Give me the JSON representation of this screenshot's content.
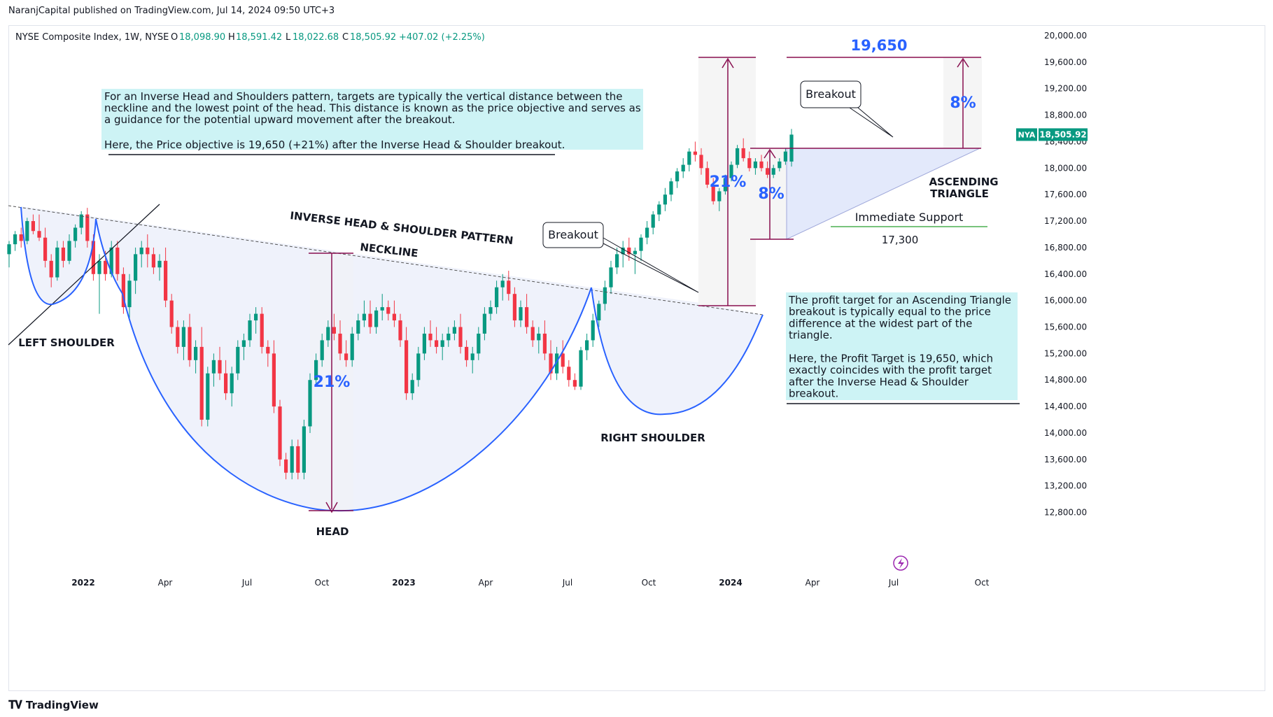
{
  "publisher": "NaranjCapital published on TradingView.com, Jul 14, 2024 09:50 UTC+3",
  "footer": {
    "brand": "TradingView"
  },
  "header": {
    "symbol": "NYSE Composite Index, 1W, NYSE",
    "o_label": "O",
    "o": "18,098.90",
    "h_label": "H",
    "h": "18,591.42",
    "l_label": "L",
    "l": "18,022.68",
    "c_label": "C",
    "c": "18,505.92",
    "change": "+407.02 (+2.25%)"
  },
  "price_tag": {
    "symbol": "NYA",
    "value": "18,505.92"
  },
  "colors": {
    "up": "#089981",
    "down": "#f23645",
    "curve": "#2962ff",
    "arrow": "#880e4f",
    "note_bg": "#cdf3f5",
    "pattern_fill": "#eef1fb",
    "support": "#4caf50",
    "accent_text": "#2962ff"
  },
  "icons": [
    "tradingview-logo-icon",
    "lightning-icon"
  ],
  "annotations": {
    "left_shoulder": "LEFT SHOULDER",
    "head": "HEAD",
    "right_shoulder": "RIGHT SHOULDER",
    "pattern_title": "INVERSE HEAD & SHOULDER PATTERN",
    "neckline": "NECKLINE",
    "breakout_1": "Breakout",
    "breakout_2": "Breakout",
    "pct_21_head": "21%",
    "pct_21_right": "21%",
    "pct_8_left": "8%",
    "pct_8_right": "8%",
    "target_value": "19,650",
    "asc_triangle_1": "ASCENDING",
    "asc_triangle_2": "TRIANGLE",
    "support_label": "Immediate Support",
    "support_value": "17,300",
    "note1": [
      "For an Inverse Head and Shoulders pattern, targets are typically the vertical distance between the",
      "neckline and the lowest point of the head. This distance is known as the price objective and serves as",
      "a guidance for the potential upward movement after the breakout.",
      "",
      "Here, the Price objective is 19,650 (+21%) after the Inverse Head & Shoulder breakout."
    ],
    "note2": [
      "The profit target for an Ascending Triangle",
      "breakout is typically equal to the price",
      "difference at the widest part of the",
      "triangle.",
      "",
      "Here, the Profit Target is 19,650, which",
      "exactly coincides with the profit target",
      "after the Inverse Head & Shoulder",
      "breakout."
    ]
  },
  "chart_data": {
    "type": "candlestick",
    "title": "NYSE Composite Index, 1W, NYSE",
    "x_ticks": [
      "2022",
      "Apr",
      "Jul",
      "Oct",
      "2023",
      "Apr",
      "Jul",
      "Oct",
      "2024",
      "Apr",
      "Jul",
      "Oct"
    ],
    "y_ticks": [
      "20,000.00",
      "19,600.00",
      "19,200.00",
      "18,800.00",
      "18,400.00",
      "18,000.00",
      "17,600.00",
      "17,200.00",
      "16,800.00",
      "16,400.00",
      "16,000.00",
      "15,600.00",
      "15,200.00",
      "14,800.00",
      "14,400.00",
      "14,000.00",
      "13,600.00",
      "13,200.00",
      "12,800.00"
    ],
    "ylim": [
      12500,
      20200
    ],
    "last_close": 18505.92,
    "key_levels": {
      "head_low": 13300,
      "neckline_breakout": 16200,
      "target": 19650,
      "support": 17300,
      "triangle_top": 18400,
      "triangle_base": 17100
    },
    "candles": [
      [
        16700,
        16900,
        16500,
        16850
      ],
      [
        16850,
        17050,
        16750,
        17000
      ],
      [
        17000,
        17100,
        16800,
        16900
      ],
      [
        16900,
        17250,
        16850,
        17200
      ],
      [
        17200,
        17300,
        17000,
        17050
      ],
      [
        17050,
        17300,
        16900,
        16950
      ],
      [
        16950,
        17100,
        16500,
        16600
      ],
      [
        16600,
        16700,
        16200,
        16350
      ],
      [
        16350,
        16900,
        16300,
        16800
      ],
      [
        16800,
        16900,
        16500,
        16600
      ],
      [
        16600,
        17000,
        16550,
        16900
      ],
      [
        16900,
        17150,
        16800,
        17100
      ],
      [
        17100,
        17350,
        17000,
        17300
      ],
      [
        17300,
        17400,
        16800,
        16900
      ],
      [
        16900,
        17000,
        16300,
        16400
      ],
      [
        16400,
        16700,
        15800,
        16600
      ],
      [
        16600,
        16750,
        16300,
        16400
      ],
      [
        16400,
        16900,
        16350,
        16800
      ],
      [
        16800,
        16900,
        16300,
        16400
      ],
      [
        16400,
        16500,
        15800,
        15900
      ],
      [
        15900,
        16400,
        15700,
        16300
      ],
      [
        16300,
        16800,
        16100,
        16700
      ],
      [
        16700,
        16900,
        16500,
        16800
      ],
      [
        16800,
        17000,
        16500,
        16700
      ],
      [
        16700,
        16800,
        16400,
        16500
      ],
      [
        16500,
        16700,
        16300,
        16600
      ],
      [
        16600,
        16800,
        15900,
        16000
      ],
      [
        16000,
        16100,
        15500,
        15600
      ],
      [
        15600,
        15700,
        15200,
        15300
      ],
      [
        15300,
        15700,
        15100,
        15600
      ],
      [
        15600,
        15800,
        15000,
        15100
      ],
      [
        15100,
        15400,
        14900,
        15300
      ],
      [
        15300,
        15600,
        14100,
        14200
      ],
      [
        14200,
        15000,
        14100,
        14900
      ],
      [
        14900,
        15200,
        14700,
        15100
      ],
      [
        15100,
        15300,
        14800,
        14900
      ],
      [
        14900,
        15100,
        14500,
        14600
      ],
      [
        14600,
        15000,
        14400,
        14900
      ],
      [
        14900,
        15400,
        14800,
        15300
      ],
      [
        15300,
        15500,
        15100,
        15400
      ],
      [
        15400,
        15800,
        15300,
        15700
      ],
      [
        15700,
        15900,
        15500,
        15800
      ],
      [
        15800,
        15900,
        15200,
        15300
      ],
      [
        15300,
        15400,
        15000,
        15200
      ],
      [
        15200,
        15400,
        14300,
        14400
      ],
      [
        14400,
        14500,
        13500,
        13600
      ],
      [
        13600,
        13700,
        13300,
        13400
      ],
      [
        13400,
        13900,
        13300,
        13800
      ],
      [
        13800,
        13900,
        13300,
        13400
      ],
      [
        13400,
        14200,
        13300,
        14100
      ],
      [
        14100,
        14900,
        14000,
        14800
      ],
      [
        14800,
        15200,
        14700,
        15100
      ],
      [
        15100,
        15500,
        15000,
        15400
      ],
      [
        15400,
        15700,
        15300,
        15600
      ],
      [
        15600,
        15800,
        15400,
        15500
      ],
      [
        15500,
        15700,
        15100,
        15200
      ],
      [
        15200,
        15400,
        15000,
        15100
      ],
      [
        15100,
        15600,
        15000,
        15500
      ],
      [
        15500,
        15800,
        15400,
        15700
      ],
      [
        15700,
        16000,
        15600,
        15800
      ],
      [
        15800,
        16000,
        15500,
        15600
      ],
      [
        15600,
        15900,
        15500,
        15850
      ],
      [
        15850,
        16100,
        15700,
        15900
      ],
      [
        15900,
        16000,
        15700,
        15800
      ],
      [
        15800,
        16000,
        15600,
        15700
      ],
      [
        15700,
        15800,
        15300,
        15400
      ],
      [
        15400,
        15600,
        14500,
        14600
      ],
      [
        14600,
        14900,
        14500,
        14800
      ],
      [
        14800,
        15300,
        14700,
        15200
      ],
      [
        15200,
        15600,
        15100,
        15500
      ],
      [
        15500,
        15700,
        15300,
        15400
      ],
      [
        15400,
        15600,
        15200,
        15300
      ],
      [
        15300,
        15500,
        15100,
        15400
      ],
      [
        15400,
        15600,
        15300,
        15500
      ],
      [
        15500,
        15700,
        15400,
        15600
      ],
      [
        15600,
        15800,
        15200,
        15300
      ],
      [
        15300,
        15400,
        15000,
        15100
      ],
      [
        15100,
        15300,
        14900,
        15200
      ],
      [
        15200,
        15600,
        15100,
        15500
      ],
      [
        15500,
        15900,
        15400,
        15800
      ],
      [
        15800,
        16000,
        15700,
        15900
      ],
      [
        15900,
        16300,
        15800,
        16200
      ],
      [
        16200,
        16400,
        16000,
        16300
      ],
      [
        16300,
        16450,
        16000,
        16100
      ],
      [
        16100,
        16200,
        15600,
        15700
      ],
      [
        15700,
        16000,
        15600,
        15900
      ],
      [
        15900,
        16100,
        15500,
        15600
      ],
      [
        15600,
        15700,
        15300,
        15400
      ],
      [
        15400,
        15600,
        15200,
        15500
      ],
      [
        15500,
        15700,
        15100,
        15200
      ],
      [
        15200,
        15400,
        14800,
        14900
      ],
      [
        14900,
        15300,
        14800,
        15200
      ],
      [
        15200,
        15400,
        14900,
        15000
      ],
      [
        15000,
        15100,
        14700,
        14800
      ],
      [
        14800,
        14900,
        14650,
        14700
      ],
      [
        14700,
        15300,
        14650,
        15250
      ],
      [
        15250,
        15500,
        15100,
        15400
      ],
      [
        15400,
        15800,
        15300,
        15700
      ],
      [
        15700,
        16000,
        15600,
        15950
      ],
      [
        15950,
        16300,
        15850,
        16200
      ],
      [
        16200,
        16600,
        16100,
        16500
      ],
      [
        16500,
        16800,
        16400,
        16700
      ],
      [
        16700,
        16900,
        16500,
        16800
      ],
      [
        16800,
        16950,
        16600,
        16700
      ],
      [
        16700,
        16800,
        16400,
        16750
      ],
      [
        16750,
        17000,
        16600,
        16950
      ],
      [
        16950,
        17200,
        16850,
        17100
      ],
      [
        17100,
        17350,
        17000,
        17300
      ],
      [
        17300,
        17500,
        17200,
        17450
      ],
      [
        17450,
        17700,
        17350,
        17600
      ],
      [
        17600,
        17850,
        17500,
        17800
      ],
      [
        17800,
        18000,
        17700,
        17950
      ],
      [
        17950,
        18150,
        17850,
        18050
      ],
      [
        18050,
        18300,
        17950,
        18250
      ],
      [
        18250,
        18400,
        18100,
        18200
      ],
      [
        18200,
        18300,
        17900,
        18000
      ],
      [
        18000,
        18100,
        17700,
        17750
      ],
      [
        17750,
        17850,
        17450,
        17500
      ],
      [
        17500,
        17700,
        17350,
        17650
      ],
      [
        17650,
        17900,
        17600,
        17850
      ],
      [
        17850,
        18100,
        17800,
        18050
      ],
      [
        18050,
        18350,
        18000,
        18300
      ],
      [
        18300,
        18450,
        18100,
        18150
      ],
      [
        18150,
        18250,
        17950,
        18000
      ],
      [
        18000,
        18150,
        17900,
        18100
      ],
      [
        18100,
        18200,
        17950,
        18000
      ],
      [
        18000,
        18100,
        17850,
        17900
      ],
      [
        17900,
        18050,
        17850,
        18000
      ],
      [
        18000,
        18150,
        17950,
        18100
      ],
      [
        18100,
        18300,
        18050,
        18250
      ],
      [
        18098.9,
        18591.42,
        18022.68,
        18505.92
      ]
    ]
  }
}
